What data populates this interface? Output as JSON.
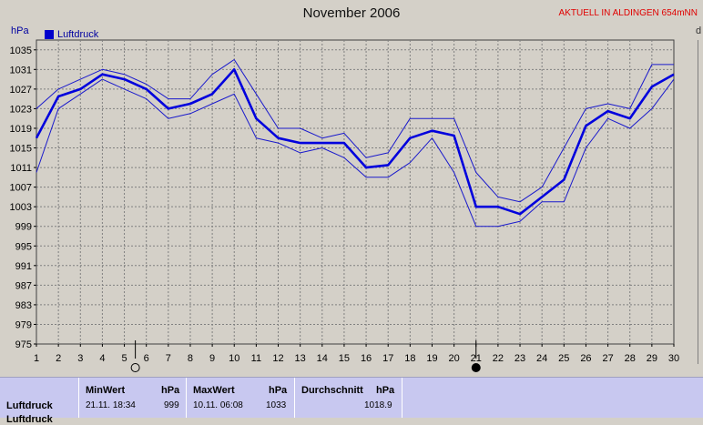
{
  "header": {
    "title": "November 2006",
    "aktuell": "AKTUELL IN ALDINGEN 654mNN",
    "unit": "hPa",
    "edge_letter": "d"
  },
  "chart_data": {
    "type": "line",
    "title": "November 2006",
    "ylabel": "hPa",
    "ylim": [
      975,
      1037
    ],
    "yticks": [
      975,
      979,
      983,
      987,
      991,
      995,
      999,
      1003,
      1007,
      1011,
      1015,
      1019,
      1023,
      1027,
      1031,
      1035
    ],
    "x": [
      1,
      2,
      3,
      4,
      5,
      6,
      7,
      8,
      9,
      10,
      11,
      12,
      13,
      14,
      15,
      16,
      17,
      18,
      19,
      20,
      21,
      22,
      23,
      24,
      25,
      26,
      27,
      28,
      29,
      30
    ],
    "grid": true,
    "legend": "top-left",
    "legend_label": "Luftdruck",
    "series": [
      {
        "name": "Luftdruck",
        "role": "mean",
        "values": [
          1017,
          1025.5,
          1027,
          1030,
          1029,
          1027,
          1023,
          1024,
          1026,
          1031,
          1021,
          1017,
          1016,
          1016,
          1016,
          1011,
          1011.5,
          1017,
          1018.5,
          1017.5,
          1003,
          1003,
          1001.5,
          1005,
          1008.5,
          1019.5,
          1022.5,
          1021,
          1027.5,
          1030
        ]
      },
      {
        "role": "max",
        "values": [
          1023,
          1027,
          1029,
          1031,
          1030,
          1028,
          1025,
          1025,
          1030,
          1033,
          1026,
          1019,
          1019,
          1017,
          1018,
          1013,
          1014,
          1021,
          1021,
          1021,
          1010,
          1005,
          1004,
          1007,
          1015,
          1023,
          1024,
          1023,
          1032,
          1032
        ]
      },
      {
        "role": "min",
        "values": [
          1010,
          1023,
          1026,
          1029,
          1027,
          1025,
          1021,
          1022,
          1024,
          1026,
          1017,
          1016,
          1014,
          1015,
          1013,
          1009,
          1009,
          1012,
          1017,
          1010,
          999,
          999,
          1000,
          1004,
          1004,
          1015,
          1021,
          1019,
          1023,
          1029
        ]
      }
    ],
    "moon_phases": [
      {
        "x": 5.5,
        "phase": "full"
      },
      {
        "x": 21,
        "phase": "new"
      }
    ],
    "colors": {
      "mean": "#0000dd",
      "minmax": "#1a1acc",
      "grid": "#808080",
      "background": "#d4d0c8"
    }
  },
  "stats": {
    "headers": {
      "min": "MinWert",
      "min_unit": "hPa",
      "max": "MaxWert",
      "max_unit": "hPa",
      "avg": "Durchschnitt",
      "avg_unit": "hPa"
    },
    "rows": [
      {
        "label": "Luftdruck",
        "min_time": "21.11.  18:34",
        "min_value": "999",
        "max_time": "10.11.  06:08",
        "max_value": "1033",
        "avg": "1018.9"
      }
    ],
    "second_row_label": "Luftdruck"
  }
}
